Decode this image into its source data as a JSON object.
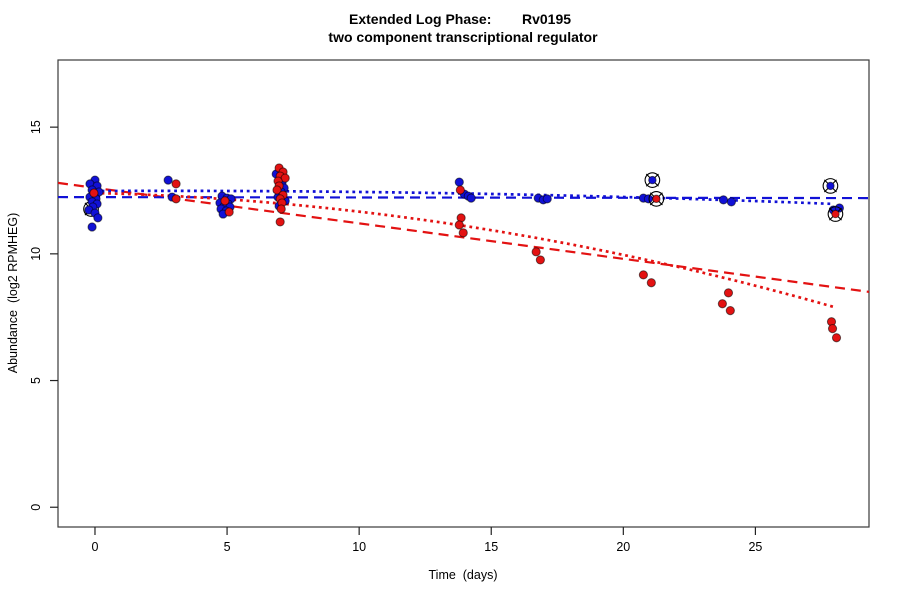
{
  "header": {
    "title_prefix": "Extended Log Phase:",
    "gene": "Rv0195",
    "subtitle": "two component transcriptional regulator"
  },
  "chart_data": {
    "type": "scatter",
    "title": "Extended Log Phase:      Rv0195",
    "subtitle": "two component transcriptional regulator",
    "xlabel": "Time  (days)",
    "ylabel": "Abundance  (log2 RPMHEG)",
    "xlim": [
      -1.4,
      29.3
    ],
    "ylim": [
      -0.78,
      17.65
    ],
    "x_ticks": [
      0,
      5,
      10,
      15,
      20,
      25
    ],
    "y_ticks": [
      0,
      5,
      10,
      15
    ],
    "grid": false,
    "legend": "none",
    "colors": {
      "blue": "#1111D6",
      "red": "#E31212",
      "marker_outline": "#000000"
    },
    "series": [
      {
        "name": "flagged-hidden-marker",
        "type": "cross-marker",
        "color_key": "marker_outline",
        "points": [
          [
            -0.15,
            11.77
          ]
        ]
      },
      {
        "name": "condition-blue-points",
        "type": "points",
        "color_key": "blue",
        "points": [
          [
            0.0,
            12.91
          ],
          [
            -0.19,
            12.76
          ],
          [
            0.08,
            12.68
          ],
          [
            -0.11,
            12.52
          ],
          [
            0.15,
            12.44
          ],
          [
            -0.04,
            12.32
          ],
          [
            -0.19,
            12.24
          ],
          [
            0.04,
            12.17
          ],
          [
            -0.11,
            12.05
          ],
          [
            0.08,
            11.97
          ],
          [
            -0.08,
            11.85
          ],
          [
            -0.23,
            11.73
          ],
          [
            0.0,
            11.61
          ],
          [
            0.11,
            11.42
          ],
          [
            -0.11,
            11.06
          ],
          [
            2.77,
            12.91
          ],
          [
            2.92,
            12.24
          ],
          [
            4.81,
            12.28
          ],
          [
            5.0,
            12.2
          ],
          [
            5.15,
            12.17
          ],
          [
            4.73,
            12.01
          ],
          [
            5.04,
            11.97
          ],
          [
            4.89,
            11.89
          ],
          [
            5.11,
            11.85
          ],
          [
            4.77,
            11.77
          ],
          [
            4.96,
            11.69
          ],
          [
            4.85,
            11.57
          ],
          [
            6.86,
            13.15
          ],
          [
            7.08,
            12.8
          ],
          [
            7.16,
            12.6
          ],
          [
            7.05,
            12.44
          ],
          [
            6.93,
            12.24
          ],
          [
            7.2,
            12.09
          ],
          [
            6.97,
            11.89
          ],
          [
            13.79,
            12.83
          ],
          [
            13.98,
            12.36
          ],
          [
            14.13,
            12.28
          ],
          [
            14.24,
            12.2
          ],
          [
            16.78,
            12.2
          ],
          [
            16.97,
            12.13
          ],
          [
            17.12,
            12.17
          ],
          [
            20.76,
            12.2
          ],
          [
            20.95,
            12.17
          ],
          [
            23.79,
            12.13
          ],
          [
            24.09,
            12.05
          ],
          [
            27.95,
            11.73
          ],
          [
            28.18,
            11.81
          ]
        ]
      },
      {
        "name": "condition-red-points",
        "type": "points",
        "color_key": "red",
        "points": [
          [
            -0.04,
            12.4
          ],
          [
            3.07,
            12.76
          ],
          [
            3.07,
            12.17
          ],
          [
            4.92,
            12.09
          ],
          [
            5.08,
            11.65
          ],
          [
            6.97,
            13.39
          ],
          [
            7.12,
            13.23
          ],
          [
            7.01,
            13.07
          ],
          [
            7.2,
            12.99
          ],
          [
            6.93,
            12.87
          ],
          [
            6.97,
            12.68
          ],
          [
            6.89,
            12.52
          ],
          [
            7.12,
            12.32
          ],
          [
            7.01,
            12.17
          ],
          [
            7.08,
            12.01
          ],
          [
            7.05,
            11.77
          ],
          [
            7.01,
            11.26
          ],
          [
            13.83,
            12.52
          ],
          [
            13.86,
            11.42
          ],
          [
            13.79,
            11.14
          ],
          [
            13.94,
            10.83
          ],
          [
            16.7,
            10.08
          ],
          [
            16.86,
            9.76
          ],
          [
            20.76,
            9.17
          ],
          [
            21.06,
            8.86
          ],
          [
            23.98,
            8.46
          ],
          [
            23.75,
            8.03
          ],
          [
            24.05,
            7.76
          ],
          [
            27.88,
            7.32
          ],
          [
            27.92,
            7.05
          ],
          [
            28.07,
            6.69
          ]
        ]
      },
      {
        "name": "flagged-blue-points",
        "type": "circled-points",
        "color_key": "blue",
        "points": [
          [
            21.1,
            12.91
          ],
          [
            27.84,
            12.68
          ]
        ]
      },
      {
        "name": "flagged-red-points",
        "type": "circled-points",
        "color_key": "red",
        "points": [
          [
            21.25,
            12.17
          ],
          [
            28.03,
            11.57
          ]
        ]
      }
    ],
    "fit_lines": [
      {
        "name": "red-dashed-fit",
        "color_key": "red",
        "style": "dashed",
        "curve": false,
        "x": [
          -1.4,
          29.3
        ],
        "y": [
          12.8,
          8.5
        ]
      },
      {
        "name": "blue-dashed-fit",
        "color_key": "blue",
        "style": "dashed",
        "curve": false,
        "x": [
          -1.4,
          29.3
        ],
        "y": [
          12.24,
          12.2
        ]
      },
      {
        "name": "red-dotted-fit",
        "color_key": "red",
        "style": "dotted",
        "curve": true,
        "x": [
          0,
          13.98,
          27.95
        ],
        "y": [
          12.4,
          12.05,
          7.91
        ]
      },
      {
        "name": "blue-dotted-fit",
        "color_key": "blue",
        "style": "dotted",
        "curve": true,
        "x": [
          0,
          13.98,
          27.95
        ],
        "y": [
          12.48,
          12.54,
          11.97
        ]
      }
    ]
  }
}
